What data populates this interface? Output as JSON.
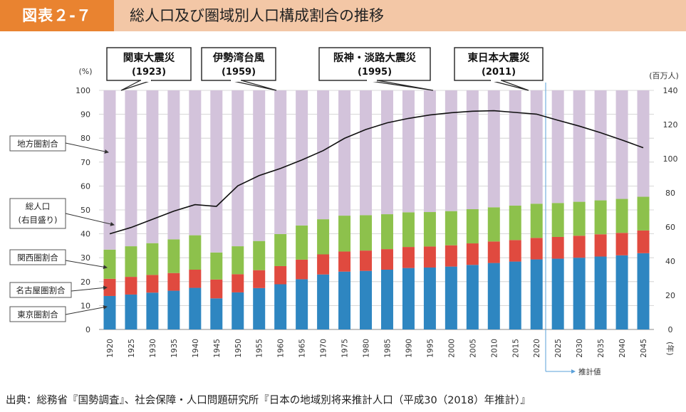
{
  "header": {
    "badge": "図表２‐７",
    "title": "総人口及び圏域別人口構成割合の推移"
  },
  "source": "出典：総務省『国勢調査』、社会保障・人口問題研究所『日本の地域別将来推計人口（平成30（2018）年推計）』",
  "colors": {
    "tokyo": "#2e86c1",
    "nagoya": "#e04a3f",
    "kansai": "#8dc14c",
    "chiho": "#d3c3db",
    "line": "#111111",
    "marker": "#5aa0d9"
  },
  "chart_data": {
    "type": "bar",
    "title": "総人口及び圏域別人口構成割合の推移",
    "stacked": true,
    "ylabel_left": "(%)",
    "ylabel_right": "(百万人)",
    "xlabel": "(年)",
    "ylim_left": [
      0,
      100
    ],
    "ylim_right": [
      0,
      140
    ],
    "yticks_left": [
      0,
      10,
      20,
      30,
      40,
      50,
      60,
      70,
      80,
      90,
      100
    ],
    "yticks_right": [
      0,
      20,
      40,
      60,
      80,
      100,
      120,
      140
    ],
    "categories": [
      "1920",
      "1925",
      "1930",
      "1935",
      "1940",
      "1945",
      "1950",
      "1955",
      "1960",
      "1965",
      "1970",
      "1975",
      "1980",
      "1985",
      "1990",
      "1995",
      "2000",
      "2005",
      "2010",
      "2015",
      "2020",
      "2025",
      "2030",
      "2035",
      "2040",
      "2045"
    ],
    "series": [
      {
        "name": "東京圏割合",
        "values": [
          14.0,
          14.6,
          15.4,
          16.2,
          17.4,
          13.0,
          15.5,
          17.3,
          18.9,
          21.0,
          23.0,
          24.2,
          24.5,
          25.0,
          25.7,
          25.9,
          26.3,
          27.0,
          27.8,
          28.4,
          29.3,
          29.6,
          30.0,
          30.5,
          31.0,
          31.9
        ]
      },
      {
        "name": "名古屋圏割合",
        "values": [
          7.2,
          7.4,
          7.4,
          7.4,
          7.6,
          7.9,
          7.6,
          7.5,
          7.6,
          8.2,
          8.4,
          8.4,
          8.5,
          8.6,
          8.8,
          8.8,
          8.9,
          9.0,
          9.0,
          9.0,
          9.0,
          9.1,
          9.2,
          9.3,
          9.4,
          9.5
        ]
      },
      {
        "name": "関西圏割合",
        "values": [
          12.2,
          12.8,
          13.3,
          14.1,
          14.4,
          11.3,
          11.7,
          12.2,
          13.4,
          14.3,
          14.7,
          15.0,
          14.8,
          14.6,
          14.5,
          14.4,
          14.3,
          14.3,
          14.3,
          14.4,
          14.3,
          14.2,
          14.2,
          14.2,
          14.2,
          14.1
        ]
      },
      {
        "name": "地方圏割合",
        "values": [
          66.6,
          65.2,
          63.9,
          62.3,
          60.6,
          67.8,
          65.2,
          63.0,
          60.1,
          56.5,
          53.9,
          52.4,
          52.2,
          51.8,
          51.0,
          50.9,
          50.5,
          49.7,
          48.9,
          48.2,
          47.4,
          47.1,
          46.6,
          46.0,
          45.4,
          44.5
        ]
      }
    ],
    "line": {
      "name": "総人口（右目盛り）",
      "values": [
        56.0,
        59.7,
        64.5,
        69.3,
        73.1,
        72.1,
        84.1,
        90.1,
        94.3,
        99.2,
        104.7,
        111.9,
        117.1,
        121.0,
        123.6,
        125.6,
        126.9,
        127.8,
        128.1,
        127.1,
        126.1,
        122.5,
        119.1,
        115.2,
        110.9,
        106.4
      ]
    },
    "annotations": [
      {
        "label": "関東大震災",
        "year": "(1923)"
      },
      {
        "label": "伊勢湾台風",
        "year": "(1959)"
      },
      {
        "label": "阪神・淡路大震災",
        "year": "(1995)"
      },
      {
        "label": "東日本大震災",
        "year": "(2011)"
      }
    ],
    "legend_labels": [
      "地方圏割合",
      "総人口",
      "(右目盛り)",
      "関西圏割合",
      "名古屋圏割合",
      "東京圏割合"
    ],
    "projection_start": "2025",
    "projection_label": "推計値"
  }
}
